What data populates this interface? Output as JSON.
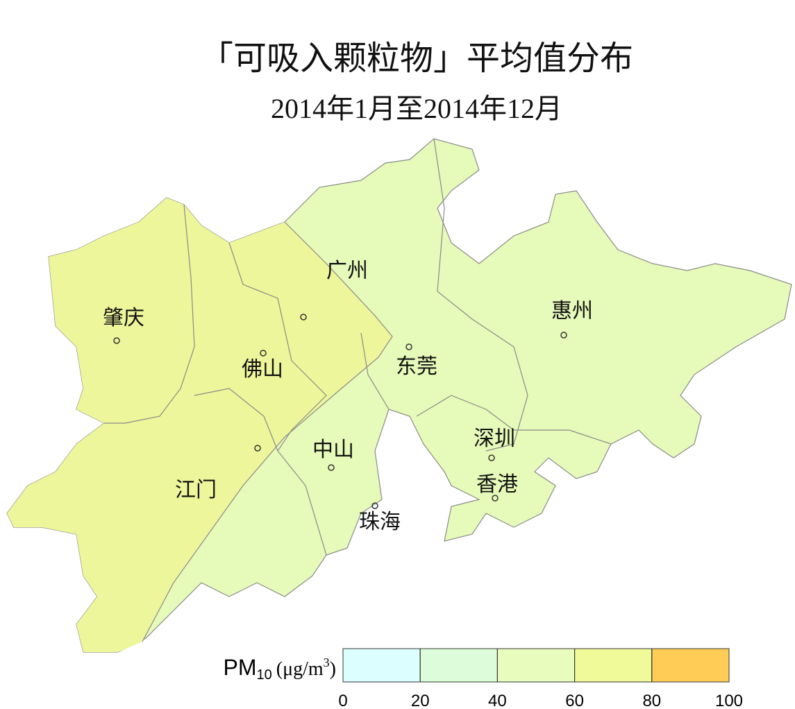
{
  "title": "「可吸入颗粒物」平均值分布",
  "subtitle": "2014年1月至2014年12月",
  "cities": [
    "广州",
    "肇庆",
    "佛山",
    "江门",
    "惠州",
    "东莞",
    "中山",
    "深圳",
    "香港",
    "珠海"
  ],
  "legend": {
    "label": [
      "PM",
      "10",
      "(μg/m",
      "3",
      ")"
    ],
    "lim": [
      0,
      100
    ],
    "ticks": [
      0,
      20,
      40,
      60,
      80,
      100
    ],
    "colors": [
      "#dcfefe",
      "#ddfcd9",
      "#e8fcbd",
      "#f0fa98",
      "#ffcc55"
    ]
  }
}
